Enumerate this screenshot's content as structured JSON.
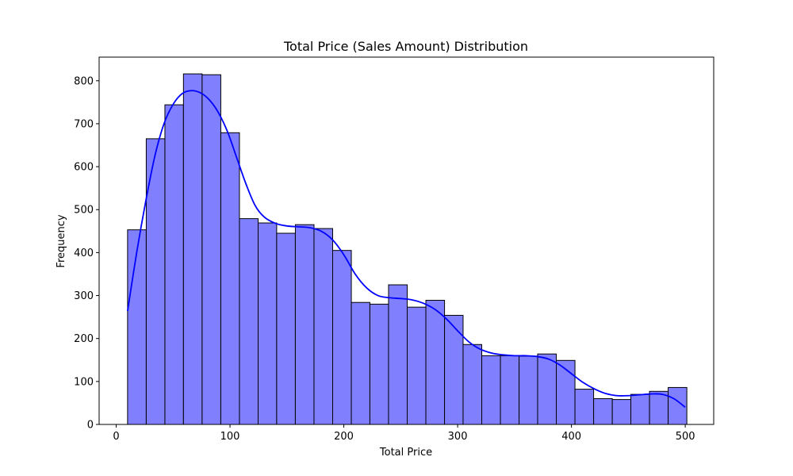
{
  "chart_data": {
    "type": "bar",
    "title": "Total Price (Sales Amount) Distribution",
    "xlabel": "Total Price",
    "ylabel": "Frequency",
    "xlim": [
      -15,
      525
    ],
    "ylim": [
      0,
      855
    ],
    "xticks": [
      0,
      100,
      200,
      300,
      400,
      500
    ],
    "yticks": [
      0,
      100,
      200,
      300,
      400,
      500,
      600,
      700,
      800
    ],
    "bar_color": "#8080ff",
    "bar_edge_color": "#000000",
    "kde_color": "#0000ff",
    "grid": false,
    "bins": [
      {
        "x0": 10.0,
        "x1": 26.4,
        "count": 453
      },
      {
        "x0": 26.4,
        "x1": 42.8,
        "count": 665
      },
      {
        "x0": 42.8,
        "x1": 59.1,
        "count": 744
      },
      {
        "x0": 59.1,
        "x1": 75.5,
        "count": 816
      },
      {
        "x0": 75.5,
        "x1": 91.9,
        "count": 814
      },
      {
        "x0": 91.9,
        "x1": 108.3,
        "count": 679
      },
      {
        "x0": 108.3,
        "x1": 124.7,
        "count": 479
      },
      {
        "x0": 124.7,
        "x1": 141.0,
        "count": 469
      },
      {
        "x0": 141.0,
        "x1": 157.4,
        "count": 445
      },
      {
        "x0": 157.4,
        "x1": 173.8,
        "count": 465
      },
      {
        "x0": 173.8,
        "x1": 190.2,
        "count": 456
      },
      {
        "x0": 190.2,
        "x1": 206.6,
        "count": 405
      },
      {
        "x0": 206.6,
        "x1": 222.9,
        "count": 284
      },
      {
        "x0": 222.9,
        "x1": 239.3,
        "count": 280
      },
      {
        "x0": 239.3,
        "x1": 255.7,
        "count": 325
      },
      {
        "x0": 255.7,
        "x1": 272.1,
        "count": 273
      },
      {
        "x0": 272.1,
        "x1": 288.5,
        "count": 289
      },
      {
        "x0": 288.5,
        "x1": 304.8,
        "count": 254
      },
      {
        "x0": 304.8,
        "x1": 321.2,
        "count": 186
      },
      {
        "x0": 321.2,
        "x1": 337.6,
        "count": 160
      },
      {
        "x0": 337.6,
        "x1": 354.0,
        "count": 160
      },
      {
        "x0": 354.0,
        "x1": 370.3,
        "count": 159
      },
      {
        "x0": 370.3,
        "x1": 386.7,
        "count": 164
      },
      {
        "x0": 386.7,
        "x1": 403.1,
        "count": 149
      },
      {
        "x0": 403.1,
        "x1": 419.5,
        "count": 82
      },
      {
        "x0": 419.5,
        "x1": 435.9,
        "count": 60
      },
      {
        "x0": 435.9,
        "x1": 452.2,
        "count": 58
      },
      {
        "x0": 452.2,
        "x1": 468.6,
        "count": 70
      },
      {
        "x0": 468.6,
        "x1": 485.0,
        "count": 77
      },
      {
        "x0": 485.0,
        "x1": 501.4,
        "count": 86
      }
    ],
    "kde": {
      "name": "KDE",
      "x": [
        10,
        18,
        26,
        34,
        42,
        50,
        58,
        66,
        74,
        82,
        90,
        98,
        106,
        114,
        122,
        130,
        140,
        150,
        160,
        170,
        180,
        190,
        200,
        210,
        220,
        230,
        240,
        250,
        260,
        270,
        280,
        290,
        300,
        310,
        320,
        330,
        340,
        350,
        360,
        370,
        380,
        390,
        400,
        410,
        420,
        430,
        440,
        450,
        460,
        470,
        480,
        490,
        500
      ],
      "y": [
        264,
        400,
        520,
        625,
        700,
        745,
        770,
        777,
        772,
        755,
        725,
        680,
        620,
        560,
        510,
        483,
        468,
        462,
        460,
        458,
        450,
        430,
        395,
        350,
        318,
        300,
        295,
        293,
        290,
        282,
        268,
        246,
        218,
        192,
        175,
        166,
        162,
        160,
        160,
        158,
        152,
        138,
        118,
        98,
        83,
        72,
        67,
        67,
        69,
        71,
        70,
        60,
        40
      ]
    }
  }
}
